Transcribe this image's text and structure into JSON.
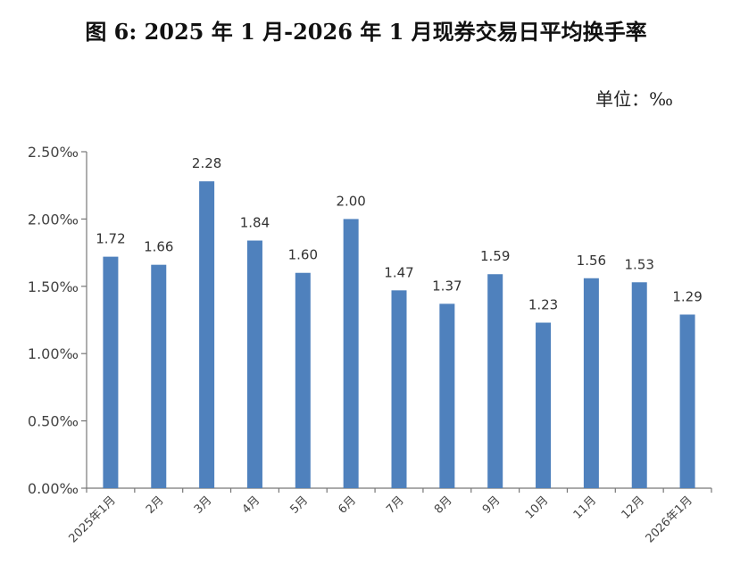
{
  "chart_data": {
    "type": "bar",
    "title": "图 6: 2025 年 1 月-2026 年 1 月现券交易日平均换手率",
    "unit_label": "单位：‰",
    "categories": [
      "2025年1月",
      "2月",
      "3月",
      "4月",
      "5月",
      "6月",
      "7月",
      "8月",
      "9月",
      "10月",
      "11月",
      "12月",
      "2026年1月"
    ],
    "values": [
      1.72,
      1.66,
      2.28,
      1.84,
      1.6,
      2.0,
      1.47,
      1.37,
      1.59,
      1.23,
      1.56,
      1.53,
      1.29
    ],
    "data_labels": [
      "1.72",
      "1.66",
      "2.28",
      "1.84",
      "1.60",
      "2.00",
      "1.47",
      "1.37",
      "1.59",
      "1.23",
      "1.56",
      "1.53",
      "1.29"
    ],
    "yticks": [
      "0.00‰",
      "0.50‰",
      "1.00‰",
      "1.50‰",
      "2.00‰",
      "2.50‰"
    ],
    "ytick_values": [
      0,
      0.5,
      1.0,
      1.5,
      2.0,
      2.5
    ],
    "ylim": [
      0,
      2.5
    ],
    "grid": false,
    "legend": "none",
    "bar_color": "#4f81bd"
  }
}
